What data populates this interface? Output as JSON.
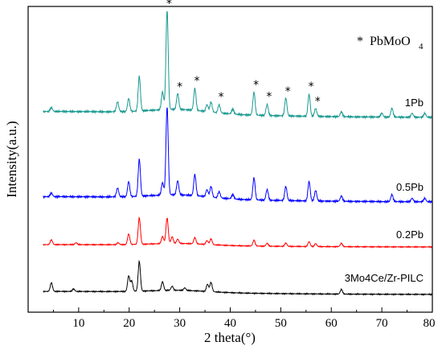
{
  "chart_data": {
    "type": "line",
    "title": "",
    "xlabel": "2 theta(°)",
    "ylabel": "Intensity(a.u.)",
    "xlim": [
      0,
      80
    ],
    "x_ticks": [
      10,
      20,
      30,
      40,
      50,
      60,
      70,
      80
    ],
    "y_ticks_shown": false,
    "grid": false,
    "legend": {
      "marker": "*",
      "text": "PbMoO",
      "subscript": "4",
      "placement": "top-right"
    },
    "marked_peaks": [
      27.5,
      29.6,
      33.0,
      37.8,
      44.7,
      47.3,
      51.0,
      55.6,
      56.9
    ],
    "series": [
      {
        "name": "1Pb",
        "color": "#1a9990",
        "baseline": 0.06,
        "offset": 3,
        "peaks": [
          [
            4.6,
            0.04
          ],
          [
            17.7,
            0.1
          ],
          [
            19.9,
            0.13
          ],
          [
            22.0,
            0.35
          ],
          [
            26.6,
            0.18
          ],
          [
            27.5,
            1.0
          ],
          [
            29.6,
            0.16
          ],
          [
            33.0,
            0.22
          ],
          [
            35.4,
            0.07
          ],
          [
            36.2,
            0.1
          ],
          [
            37.8,
            0.08
          ],
          [
            40.5,
            0.05
          ],
          [
            44.7,
            0.23
          ],
          [
            47.3,
            0.11
          ],
          [
            51.0,
            0.18
          ],
          [
            55.6,
            0.22
          ],
          [
            56.9,
            0.08
          ],
          [
            62.0,
            0.05
          ],
          [
            70.0,
            0.04
          ],
          [
            72.0,
            0.09
          ],
          [
            76.0,
            0.04
          ],
          [
            78.5,
            0.04
          ]
        ]
      },
      {
        "name": "0.5Pb",
        "color": "#0000ff",
        "baseline": 0.06,
        "offset": 2,
        "peaks": [
          [
            4.6,
            0.04
          ],
          [
            17.7,
            0.1
          ],
          [
            19.9,
            0.17
          ],
          [
            22.0,
            0.42
          ],
          [
            26.6,
            0.14
          ],
          [
            27.5,
            1.0
          ],
          [
            29.6,
            0.16
          ],
          [
            33.0,
            0.24
          ],
          [
            35.4,
            0.08
          ],
          [
            36.2,
            0.12
          ],
          [
            37.8,
            0.07
          ],
          [
            40.5,
            0.05
          ],
          [
            44.7,
            0.25
          ],
          [
            47.3,
            0.12
          ],
          [
            51.0,
            0.16
          ],
          [
            55.6,
            0.22
          ],
          [
            56.9,
            0.12
          ],
          [
            62.0,
            0.06
          ],
          [
            72.0,
            0.08
          ],
          [
            76.0,
            0.04
          ],
          [
            78.5,
            0.04
          ]
        ]
      },
      {
        "name": "0.2Pb",
        "color": "#ff0000",
        "baseline": 0.05,
        "offset": 1,
        "peaks": [
          [
            4.6,
            0.1
          ],
          [
            9.5,
            0.04
          ],
          [
            17.8,
            0.04
          ],
          [
            19.9,
            0.22
          ],
          [
            22.0,
            0.55
          ],
          [
            26.6,
            0.15
          ],
          [
            27.5,
            0.53
          ],
          [
            28.5,
            0.14
          ],
          [
            29.6,
            0.09
          ],
          [
            33.0,
            0.13
          ],
          [
            35.4,
            0.08
          ],
          [
            36.2,
            0.12
          ],
          [
            44.7,
            0.12
          ],
          [
            47.3,
            0.06
          ],
          [
            51.0,
            0.07
          ],
          [
            55.6,
            0.1
          ],
          [
            56.9,
            0.06
          ],
          [
            62.0,
            0.07
          ]
        ]
      },
      {
        "name": "3Mo4Ce/Zr-PILC",
        "color": "#000000",
        "baseline": 0.06,
        "offset": 0,
        "peaks": [
          [
            4.6,
            0.17
          ],
          [
            9.0,
            0.05
          ],
          [
            19.9,
            0.3
          ],
          [
            20.5,
            0.2
          ],
          [
            22.0,
            0.58
          ],
          [
            26.6,
            0.17
          ],
          [
            28.5,
            0.08
          ],
          [
            31.0,
            0.05
          ],
          [
            35.5,
            0.14
          ],
          [
            36.2,
            0.18
          ],
          [
            62.0,
            0.09
          ]
        ]
      }
    ]
  }
}
